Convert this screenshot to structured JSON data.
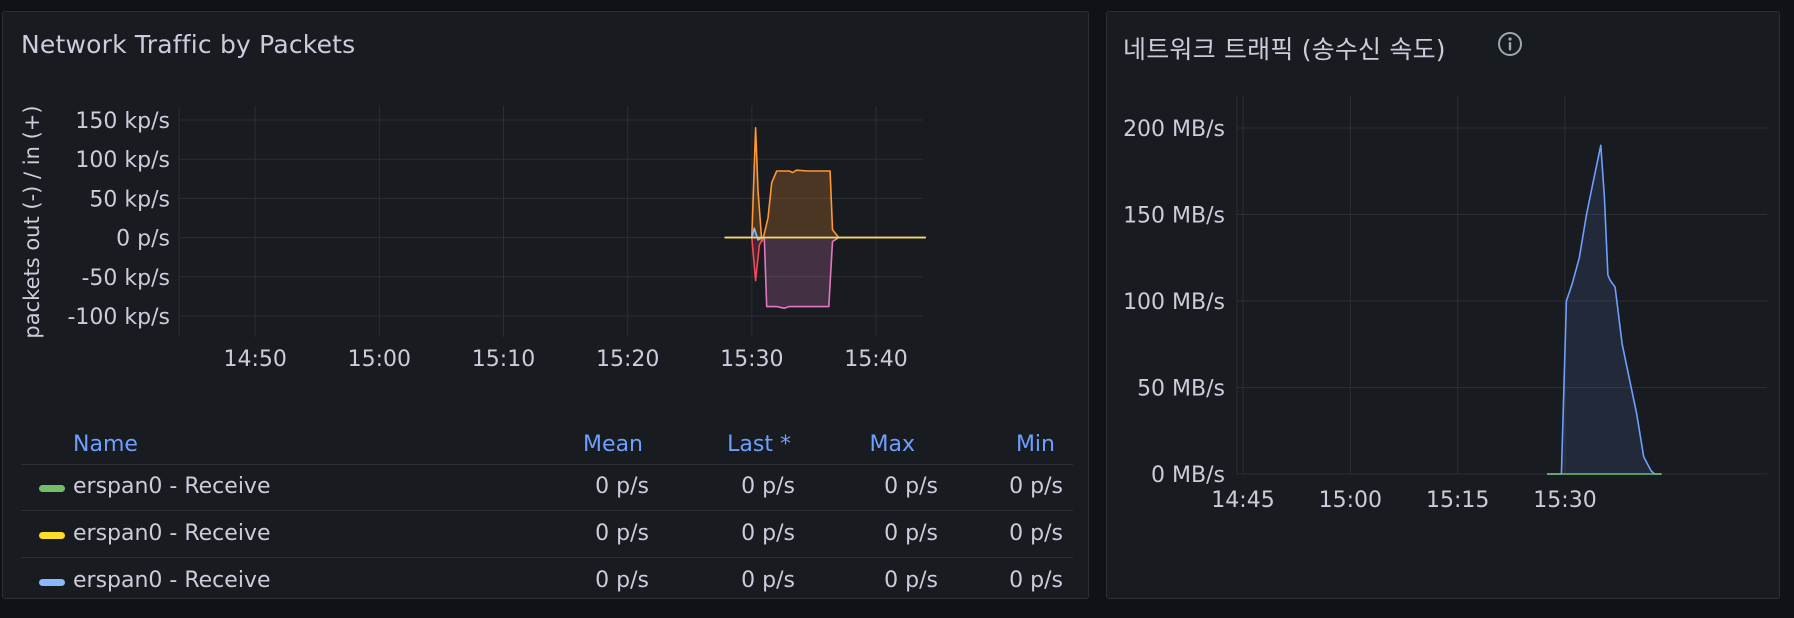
{
  "panels": {
    "left": {
      "title": "Network Traffic by Packets",
      "y_axis_label": "packets out (-) / in (+)",
      "legend": {
        "headers": {
          "name": "Name",
          "mean": "Mean",
          "last": "Last *",
          "max": "Max",
          "min": "Min"
        },
        "rows": [
          {
            "name": "erspan0 - Receive",
            "color": "#73bf69",
            "mean": "0 p/s",
            "last": "0 p/s",
            "max": "0 p/s",
            "min": "0 p/s"
          },
          {
            "name": "erspan0 - Receive",
            "color": "#fade2a",
            "mean": "0 p/s",
            "last": "0 p/s",
            "max": "0 p/s",
            "min": "0 p/s"
          },
          {
            "name": "erspan0 - Receive",
            "color": "#8ab8ff",
            "mean": "0 p/s",
            "last": "0 p/s",
            "max": "0 p/s",
            "min": "0 p/s"
          }
        ]
      }
    },
    "right": {
      "title": "네트워크 트래픽 (송수신 속도)",
      "info_icon": "info-circle-icon"
    }
  },
  "chart_data": [
    {
      "type": "area",
      "title": "Network Traffic by Packets",
      "ylabel": "packets out (-) / in (+)",
      "x_ticks": [
        "14:50",
        "15:00",
        "15:10",
        "15:20",
        "15:30",
        "15:40"
      ],
      "y_ticks": [
        "150 kp/s",
        "100 kp/s",
        "50 kp/s",
        "0 p/s",
        "-50 kp/s",
        "-100 kp/s"
      ],
      "ylim": [
        -110,
        160
      ],
      "y_unit": "kp/s",
      "grid": true,
      "legend_position": "bottom",
      "x_range": [
        "14:40",
        "15:44"
      ],
      "series": [
        {
          "color": "#ff9830",
          "x": [
            "15:27.8",
            "15:30.0",
            "15:30.3",
            "15:30.5",
            "15:30.8",
            "15:31.0",
            "15:31.3",
            "15:31.6",
            "15:32.0",
            "15:33.0",
            "15:33.3",
            "15:33.6",
            "15:34.5",
            "15:35.5",
            "15:36.3",
            "15:36.5",
            "15:37.0",
            "15:44.0"
          ],
          "values": [
            0,
            0,
            140,
            60,
            -5,
            5,
            25,
            70,
            85,
            85,
            83,
            86,
            85,
            85,
            85,
            10,
            0,
            0
          ]
        },
        {
          "color": "#f2495c",
          "x": [
            "15:27.8",
            "15:30.0",
            "15:30.3",
            "15:30.6",
            "15:30.9",
            "15:31.2",
            "15:44.0"
          ],
          "values": [
            0,
            0,
            -55,
            -10,
            0,
            0,
            0
          ]
        },
        {
          "color": "#e07ac0",
          "x": [
            "15:27.8",
            "15:31.0",
            "15:31.2",
            "15:32.0",
            "15:32.6",
            "15:33.0",
            "15:36.2",
            "15:36.5",
            "15:37.0",
            "15:44.0"
          ],
          "values": [
            0,
            0,
            -88,
            -88,
            -90,
            -88,
            -88,
            -5,
            0,
            0
          ]
        },
        {
          "color": "#8ab8ff",
          "x": [
            "15:27.8",
            "15:30.0",
            "15:30.2",
            "15:30.5",
            "15:30.8",
            "15:44.0"
          ],
          "values": [
            0,
            0,
            12,
            -3,
            0,
            0
          ]
        },
        {
          "color": "#fade2a",
          "x": [
            "15:27.8",
            "15:44.0"
          ],
          "values": [
            0,
            0
          ]
        }
      ]
    },
    {
      "type": "area",
      "title": "네트워크 트래픽 (송수신 속도)",
      "x_ticks": [
        "14:45",
        "15:00",
        "15:15",
        "15:30"
      ],
      "y_ticks": [
        "200 MB/s",
        "150 MB/s",
        "100 MB/s",
        "50 MB/s",
        "0 MB/s"
      ],
      "ylim": [
        0,
        200
      ],
      "y_unit": "MB/s",
      "grid": true,
      "x_range": [
        "14:44",
        "15:44"
      ],
      "series": [
        {
          "color": "#6e9fff",
          "x": [
            "15:27.5",
            "15:29.5",
            "15:30.2",
            "15:31.0",
            "15:32.0",
            "15:33.0",
            "15:34.0",
            "15:35.0",
            "15:35.5",
            "15:36.0",
            "15:36.3",
            "15:37.0",
            "15:38.0",
            "15:39.0",
            "15:40.0",
            "15:41.0",
            "15:42.0",
            "15:42.5",
            "15:43.5"
          ],
          "values": [
            0,
            0,
            100,
            110,
            125,
            150,
            170,
            190,
            160,
            115,
            112,
            108,
            75,
            55,
            35,
            10,
            2,
            0,
            0
          ]
        },
        {
          "color": "#73bf69",
          "x": [
            "15:27.5",
            "15:43.5"
          ],
          "values": [
            0,
            0
          ]
        }
      ]
    }
  ]
}
